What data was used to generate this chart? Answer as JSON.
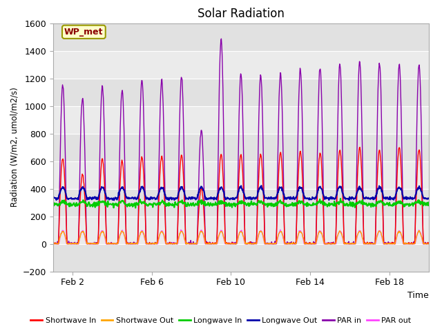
{
  "title": "Solar Radiation",
  "ylabel": "Radiation (W/m2, umol/m2/s)",
  "xlabel": "Time",
  "ylim": [
    -200,
    1600
  ],
  "yticks": [
    -200,
    0,
    200,
    400,
    600,
    800,
    1000,
    1200,
    1400,
    1600
  ],
  "xtick_labels": [
    "Feb 2",
    "Feb 6",
    "Feb 10",
    "Feb 14",
    "Feb 18"
  ],
  "xtick_positions": [
    1,
    5,
    9,
    13,
    17
  ],
  "annotation_text": "WP_met",
  "annotation_color": "#8B0000",
  "annotation_bg": "#FFFFCC",
  "annotation_edge": "#999900",
  "fig_bg": "#FFFFFF",
  "plot_bg": "#EBEBEB",
  "grid_color": "#FFFFFF",
  "legend_entries": [
    "Shortwave In",
    "Shortwave Out",
    "Longwave In",
    "Longwave Out",
    "PAR in",
    "PAR out"
  ],
  "legend_colors": [
    "#FF0000",
    "#FFA500",
    "#00CC00",
    "#0000AA",
    "#8800AA",
    "#FF44FF"
  ],
  "n_days": 19,
  "sw_in_peaks": [
    620,
    500,
    615,
    600,
    630,
    640,
    640,
    400,
    650,
    650,
    650,
    660,
    670,
    660,
    680,
    700,
    680,
    700,
    680
  ],
  "par_in_peaks": [
    1150,
    1050,
    1140,
    1120,
    1190,
    1190,
    1210,
    830,
    1480,
    1230,
    1220,
    1240,
    1260,
    1280,
    1300,
    1320,
    1310,
    1300,
    1300
  ]
}
